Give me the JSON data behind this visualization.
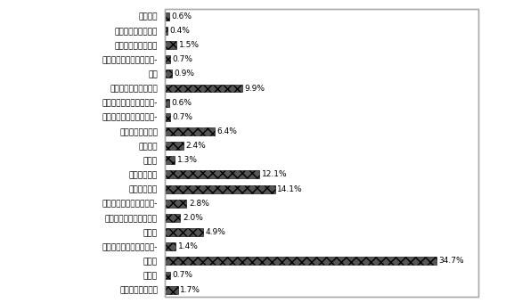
{
  "categories_top_to_bottom": [
    "国际组织",
    "公共管理与社会组织",
    "文化、体育和娱乐业",
    "卫生、社会保障和社会福-",
    "教育",
    "居民服务和其他服务业",
    "水利、环境和公共设施管-",
    "科学研究、技术服务和地-",
    "租赁和商务服务业",
    "房地产业",
    "金融业",
    "住宿和餐饮业",
    "批发和零售业",
    "信息传输、计算机服务和-",
    "交通运输、仓储和邮政业",
    "建筑业",
    "电力、燃气及水的生产和-",
    "制造业",
    "采矿业",
    "农、林、牧、渔业"
  ],
  "values_top_to_bottom": [
    0.6,
    0.4,
    1.5,
    0.7,
    0.9,
    9.9,
    0.6,
    0.7,
    6.4,
    2.4,
    1.3,
    12.1,
    14.1,
    2.8,
    2.0,
    4.9,
    1.4,
    34.7,
    0.7,
    1.7
  ],
  "bar_color": "#555555",
  "background_color": "#ffffff",
  "border_color": "#aaaaaa",
  "label_fontsize": 6.5,
  "value_fontsize": 6.5,
  "xlim": [
    0,
    40
  ],
  "bar_height": 0.55
}
